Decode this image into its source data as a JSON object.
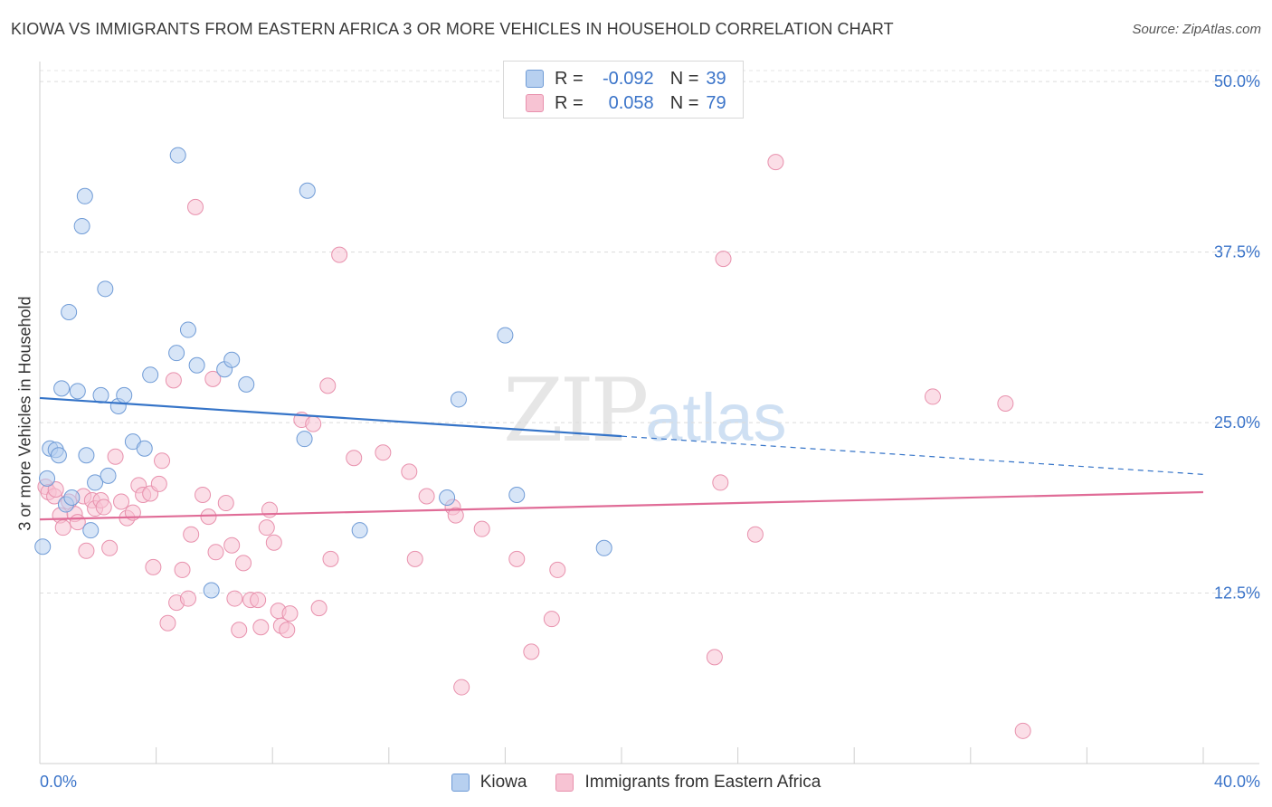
{
  "title": "KIOWA VS IMMIGRANTS FROM EASTERN AFRICA 3 OR MORE VEHICLES IN HOUSEHOLD CORRELATION CHART",
  "source": "Source: ZipAtlas.com",
  "watermark": {
    "zip": "ZIP",
    "atlas": "atlas"
  },
  "legend": {
    "kiowa": {
      "r_label": "R =",
      "r_value": "-0.092",
      "n_label": "N =",
      "n_value": "39"
    },
    "immigrants": {
      "r_label": "R =",
      "r_value": "0.058",
      "n_label": "N =",
      "n_value": "79"
    }
  },
  "bottom_legend": {
    "kiowa": "Kiowa",
    "immigrants": "Immigrants from Eastern Africa"
  },
  "chart_data": {
    "type": "scatter",
    "title": "KIOWA VS IMMIGRANTS FROM EASTERN AFRICA 3 OR MORE VEHICLES IN HOUSEHOLD CORRELATION CHART",
    "xlabel": "",
    "ylabel": "3 or more Vehicles in Household",
    "xlim": [
      0,
      40
    ],
    "ylim": [
      0,
      52
    ],
    "x_tick_labels": [
      "0.0%",
      "40.0%"
    ],
    "y_ticks": [
      12.5,
      25.0,
      37.5,
      50.0
    ],
    "y_tick_labels": [
      "12.5%",
      "25.0%",
      "37.5%",
      "50.0%"
    ],
    "grid": true,
    "colors": {
      "kiowa_fill": "#b7d0f0",
      "kiowa_edge": "#6f9bd6",
      "kiowa_line": "#3574c8",
      "imm_fill": "#f7c3d3",
      "imm_edge": "#e891ad",
      "imm_line": "#e06c97",
      "tick_label": "#3b74c9"
    },
    "series": [
      {
        "name": "Kiowa",
        "trend": {
          "x0": 0,
          "y0": 26.8,
          "x1": 20,
          "y1": 24.0,
          "dash_to_x": 40,
          "dash_to_y": 21.2
        },
        "points": [
          [
            0.1,
            15.9
          ],
          [
            0.25,
            20.9
          ],
          [
            0.35,
            23.1
          ],
          [
            0.55,
            23.0
          ],
          [
            0.65,
            22.6
          ],
          [
            0.75,
            27.5
          ],
          [
            0.9,
            19.0
          ],
          [
            1.0,
            33.1
          ],
          [
            1.1,
            19.5
          ],
          [
            1.3,
            27.3
          ],
          [
            1.45,
            39.4
          ],
          [
            1.55,
            41.6
          ],
          [
            1.6,
            22.6
          ],
          [
            1.75,
            17.1
          ],
          [
            1.9,
            20.6
          ],
          [
            2.1,
            27.0
          ],
          [
            2.25,
            34.8
          ],
          [
            2.35,
            21.1
          ],
          [
            2.7,
            26.2
          ],
          [
            2.9,
            27.0
          ],
          [
            3.2,
            23.6
          ],
          [
            3.6,
            23.1
          ],
          [
            3.8,
            28.5
          ],
          [
            4.7,
            30.1
          ],
          [
            4.75,
            44.6
          ],
          [
            5.1,
            31.8
          ],
          [
            5.4,
            29.2
          ],
          [
            5.9,
            12.7
          ],
          [
            6.35,
            28.9
          ],
          [
            6.6,
            29.6
          ],
          [
            7.1,
            27.8
          ],
          [
            9.1,
            23.8
          ],
          [
            9.2,
            42.0
          ],
          [
            11.0,
            17.1
          ],
          [
            14.0,
            19.5
          ],
          [
            14.4,
            26.7
          ],
          [
            16.0,
            31.4
          ],
          [
            16.4,
            19.7
          ],
          [
            19.4,
            15.8
          ]
        ]
      },
      {
        "name": "Immigrants from Eastern Africa",
        "trend": {
          "x0": 0,
          "y0": 17.9,
          "x1": 40,
          "y1": 19.9
        },
        "points": [
          [
            0.2,
            20.3
          ],
          [
            0.3,
            19.9
          ],
          [
            0.5,
            19.6
          ],
          [
            0.55,
            20.1
          ],
          [
            0.7,
            18.2
          ],
          [
            0.8,
            17.3
          ],
          [
            1.0,
            19.2
          ],
          [
            1.2,
            18.3
          ],
          [
            1.3,
            17.7
          ],
          [
            1.5,
            19.6
          ],
          [
            1.6,
            15.6
          ],
          [
            1.8,
            19.3
          ],
          [
            1.9,
            18.7
          ],
          [
            2.1,
            19.3
          ],
          [
            2.2,
            18.8
          ],
          [
            2.4,
            15.8
          ],
          [
            2.6,
            22.5
          ],
          [
            2.8,
            19.2
          ],
          [
            3.0,
            18.0
          ],
          [
            3.2,
            18.4
          ],
          [
            3.4,
            20.4
          ],
          [
            3.55,
            19.7
          ],
          [
            3.8,
            19.8
          ],
          [
            3.9,
            14.4
          ],
          [
            4.1,
            20.5
          ],
          [
            4.2,
            22.2
          ],
          [
            4.4,
            10.3
          ],
          [
            4.6,
            28.1
          ],
          [
            4.7,
            11.8
          ],
          [
            4.9,
            14.2
          ],
          [
            5.1,
            12.1
          ],
          [
            5.2,
            16.8
          ],
          [
            5.35,
            40.8
          ],
          [
            5.6,
            19.7
          ],
          [
            5.8,
            18.1
          ],
          [
            5.95,
            28.2
          ],
          [
            6.05,
            15.5
          ],
          [
            6.4,
            19.1
          ],
          [
            6.6,
            16.0
          ],
          [
            6.7,
            12.1
          ],
          [
            6.85,
            9.8
          ],
          [
            7.0,
            14.7
          ],
          [
            7.25,
            12.0
          ],
          [
            7.5,
            12.0
          ],
          [
            7.6,
            10.0
          ],
          [
            7.8,
            17.3
          ],
          [
            7.9,
            18.6
          ],
          [
            8.05,
            16.2
          ],
          [
            8.2,
            11.2
          ],
          [
            8.3,
            10.1
          ],
          [
            8.5,
            9.8
          ],
          [
            8.6,
            11.0
          ],
          [
            9.0,
            25.2
          ],
          [
            9.4,
            24.9
          ],
          [
            9.6,
            11.4
          ],
          [
            9.9,
            27.7
          ],
          [
            10.0,
            15.0
          ],
          [
            10.3,
            37.3
          ],
          [
            10.8,
            22.4
          ],
          [
            11.8,
            22.8
          ],
          [
            12.7,
            21.4
          ],
          [
            12.9,
            15.0
          ],
          [
            13.3,
            19.6
          ],
          [
            14.2,
            18.8
          ],
          [
            14.3,
            18.2
          ],
          [
            14.5,
            5.6
          ],
          [
            15.2,
            17.2
          ],
          [
            16.4,
            15.0
          ],
          [
            16.9,
            8.2
          ],
          [
            17.6,
            10.6
          ],
          [
            17.8,
            14.2
          ],
          [
            23.2,
            7.8
          ],
          [
            23.4,
            20.6
          ],
          [
            23.5,
            37.0
          ],
          [
            24.6,
            16.8
          ],
          [
            25.3,
            44.1
          ],
          [
            30.7,
            26.9
          ],
          [
            33.2,
            26.4
          ],
          [
            33.8,
            2.4
          ]
        ]
      }
    ]
  }
}
